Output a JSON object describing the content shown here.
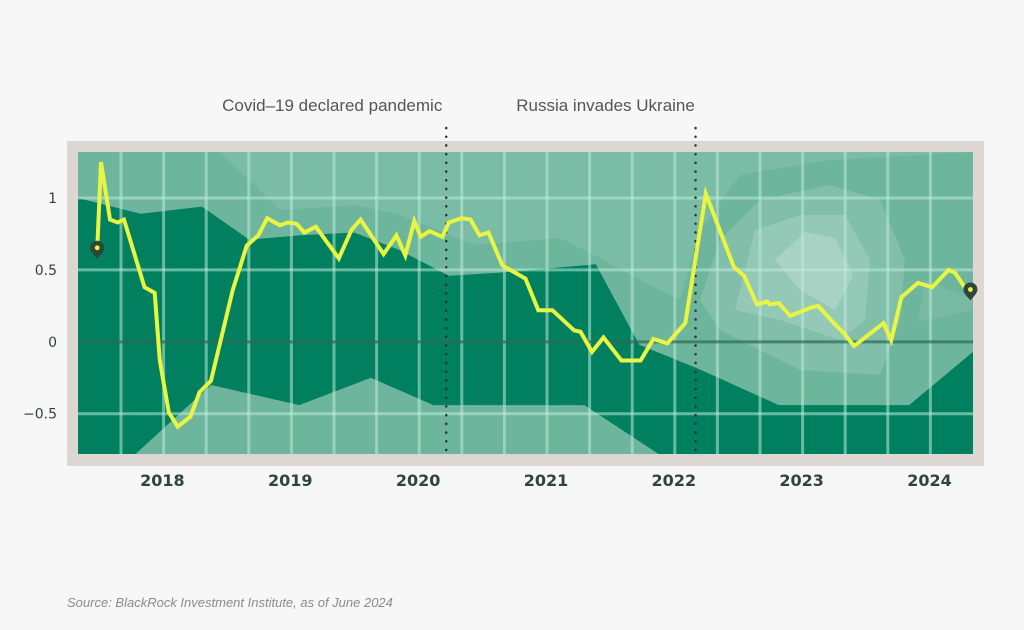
{
  "chart_data": {
    "type": "line",
    "title": "",
    "xlabel": "",
    "ylabel": "",
    "xlim": [
      2017.34,
      2024.34
    ],
    "ylim": [
      -0.78,
      1.32
    ],
    "grid": true,
    "yticks": [
      {
        "value": 1,
        "label": "1"
      },
      {
        "value": 0.5,
        "label": "0.5"
      },
      {
        "value": 0,
        "label": "0"
      },
      {
        "value": -0.5,
        "label": "-0.5"
      }
    ],
    "xticks": [
      {
        "value": 2018,
        "label": "2018"
      },
      {
        "value": 2019,
        "label": "2019"
      },
      {
        "value": 2020,
        "label": "2020"
      },
      {
        "value": 2021,
        "label": "2021"
      },
      {
        "value": 2022,
        "label": "2022"
      },
      {
        "value": 2023,
        "label": "2023"
      },
      {
        "value": 2024,
        "label": "2024"
      }
    ],
    "annotations": [
      {
        "x": 2020.22,
        "label": "Covid–19 declared pandemic"
      },
      {
        "x": 2022.17,
        "label": "Russia invades Ukraine"
      }
    ],
    "series": [
      {
        "name": "index",
        "color": "#e8f542",
        "x": [
          2017.49,
          2017.52,
          2017.59,
          2017.65,
          2017.7,
          2017.86,
          2017.94,
          2017.98,
          2018.05,
          2018.12,
          2018.22,
          2018.29,
          2018.38,
          2018.55,
          2018.66,
          2018.75,
          2018.82,
          2018.92,
          2018.98,
          2019.05,
          2019.11,
          2019.2,
          2019.38,
          2019.48,
          2019.55,
          2019.73,
          2019.83,
          2019.9,
          2019.97,
          2020.02,
          2020.09,
          2020.19,
          2020.24,
          2020.34,
          2020.41,
          2020.48,
          2020.55,
          2020.66,
          2020.84,
          2020.94,
          2021.05,
          2021.22,
          2021.27,
          2021.36,
          2021.45,
          2021.59,
          2021.74,
          2021.84,
          2021.95,
          2022.09,
          2022.25,
          2022.47,
          2022.55,
          2022.65,
          2022.73,
          2022.75,
          2022.82,
          2022.91,
          2023.08,
          2023.13,
          2023.23,
          2023.33,
          2023.41,
          2023.64,
          2023.7,
          2023.78,
          2023.91,
          2024.02,
          2024.15,
          2024.2,
          2024.29,
          2024.32
        ],
        "values": [
          0.64,
          1.25,
          0.85,
          0.83,
          0.85,
          0.38,
          0.34,
          -0.13,
          -0.49,
          -0.59,
          -0.52,
          -0.35,
          -0.27,
          0.36,
          0.67,
          0.74,
          0.86,
          0.81,
          0.83,
          0.82,
          0.76,
          0.8,
          0.58,
          0.78,
          0.85,
          0.61,
          0.74,
          0.6,
          0.84,
          0.73,
          0.77,
          0.73,
          0.83,
          0.86,
          0.85,
          0.74,
          0.76,
          0.53,
          0.44,
          0.22,
          0.22,
          0.08,
          0.07,
          -0.07,
          0.03,
          -0.13,
          -0.13,
          0.02,
          -0.01,
          0.13,
          1.03,
          0.52,
          0.46,
          0.26,
          0.28,
          0.26,
          0.27,
          0.18,
          0.24,
          0.25,
          0.15,
          0.06,
          -0.03,
          0.13,
          0.01,
          0.31,
          0.41,
          0.38,
          0.5,
          0.48,
          0.36,
          0.35
        ]
      }
    ],
    "markers": [
      {
        "name": "start-pin",
        "x": 2017.49,
        "value": 0.64
      },
      {
        "name": "end-pin",
        "x": 2024.32,
        "value": 0.35
      }
    ],
    "bands": {
      "dark_upper": [
        [
          2017.34,
          1.0
        ],
        [
          2017.83,
          0.89
        ],
        [
          2018.31,
          0.94
        ],
        [
          2018.68,
          0.71
        ],
        [
          2019.07,
          0.74
        ],
        [
          2019.5,
          0.76
        ],
        [
          2019.85,
          0.64
        ],
        [
          2020.24,
          0.46
        ],
        [
          2020.63,
          0.48
        ],
        [
          2021.39,
          0.54
        ],
        [
          2021.73,
          -0.02
        ],
        [
          2022.2,
          -0.19
        ],
        [
          2022.82,
          -0.44
        ],
        [
          2023.29,
          -0.44
        ],
        [
          2023.84,
          -0.44
        ],
        [
          2024.34,
          -0.07
        ]
      ],
      "dark_lower": [
        [
          2017.34,
          -0.78
        ],
        [
          2017.79,
          -0.78
        ],
        [
          2018.38,
          -0.3
        ],
        [
          2019.07,
          -0.44
        ],
        [
          2019.63,
          -0.25
        ],
        [
          2020.12,
          -0.44
        ],
        [
          2021.3,
          -0.44
        ],
        [
          2021.88,
          -0.78
        ]
      ]
    },
    "colors": {
      "frame": "#dcd7d2",
      "dark_band": "#00805f",
      "base_band": "#6db59c",
      "grid": "#a8d8c6",
      "zero_line": "#2e6b55",
      "pin": "#2f4538",
      "annotation_line": "#333333"
    }
  },
  "source": "Source: BlackRock Investment Institute, as of June 2024"
}
